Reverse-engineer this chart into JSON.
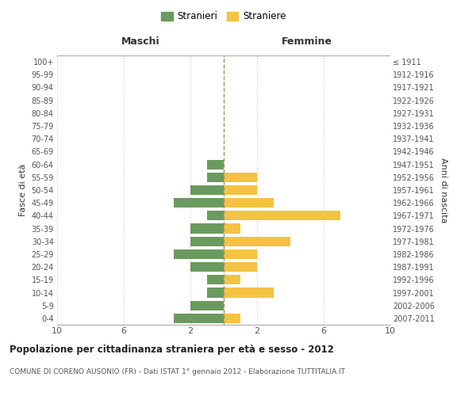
{
  "age_groups": [
    "0-4",
    "5-9",
    "10-14",
    "15-19",
    "20-24",
    "25-29",
    "30-34",
    "35-39",
    "40-44",
    "45-49",
    "50-54",
    "55-59",
    "60-64",
    "65-69",
    "70-74",
    "75-79",
    "80-84",
    "85-89",
    "90-94",
    "95-99",
    "100+"
  ],
  "birth_years": [
    "2007-2011",
    "2002-2006",
    "1997-2001",
    "1992-1996",
    "1987-1991",
    "1982-1986",
    "1977-1981",
    "1972-1976",
    "1967-1971",
    "1962-1966",
    "1957-1961",
    "1952-1956",
    "1947-1951",
    "1942-1946",
    "1937-1941",
    "1932-1936",
    "1927-1931",
    "1922-1926",
    "1917-1921",
    "1912-1916",
    "≤ 1911"
  ],
  "maschi": [
    3,
    2,
    1,
    1,
    2,
    3,
    2,
    2,
    1,
    3,
    2,
    1,
    1,
    0,
    0,
    0,
    0,
    0,
    0,
    0,
    0
  ],
  "femmine": [
    1,
    0,
    3,
    1,
    2,
    2,
    4,
    1,
    7,
    3,
    2,
    2,
    0,
    0,
    0,
    0,
    0,
    0,
    0,
    0,
    0
  ],
  "maschi_color": "#6b9a5e",
  "femmine_color": "#f5c242",
  "center_line_color": "#999966",
  "background_color": "#ffffff",
  "grid_color": "#cccccc",
  "title": "Popolazione per cittadinanza straniera per età e sesso - 2012",
  "subtitle": "COMUNE DI CORENO AUSONIO (FR) - Dati ISTAT 1° gennaio 2012 - Elaborazione TUTTITALIA.IT",
  "ylabel_left": "Fasce di età",
  "ylabel_right": "Anni di nascita",
  "xlabel_left": "Maschi",
  "xlabel_top_right": "Femmine",
  "legend_maschi": "Stranieri",
  "legend_femmine": "Straniere",
  "xlim": 10
}
